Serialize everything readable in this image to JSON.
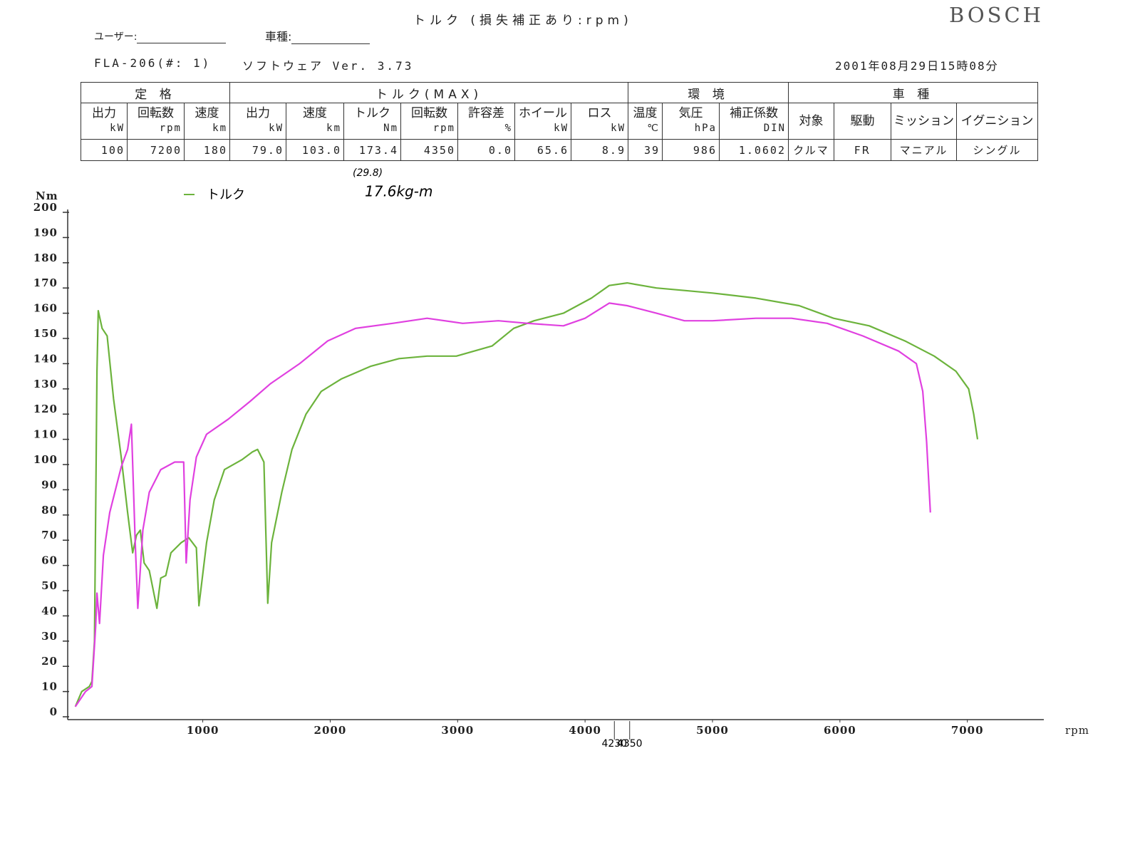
{
  "header": {
    "title": "トルク (損失補正あり:rpm)",
    "brand": "BOSCH",
    "user_label": "ユーザー:",
    "model_label": "車種:",
    "device": "FLA-206(#: 1)",
    "software": "ソフトウェア Ver. 3.73",
    "datetime": "2001年08月29日15時08分"
  },
  "table": {
    "groups": [
      {
        "label": "定 格",
        "columns": [
          {
            "name": "出力",
            "unit": "kW",
            "value": "100"
          },
          {
            "name": "回転数",
            "unit": "rpm",
            "value": "7200"
          },
          {
            "name": "速度",
            "unit": "km",
            "value": "180"
          }
        ]
      },
      {
        "label": "トルク(MAX)",
        "columns": [
          {
            "name": "出力",
            "unit": "kW",
            "value": "79.0"
          },
          {
            "name": "速度",
            "unit": "km",
            "value": "103.0"
          },
          {
            "name": "トルク",
            "unit": "Nm",
            "value": "173.4"
          },
          {
            "name": "回転数",
            "unit": "rpm",
            "value": "4350"
          },
          {
            "name": "許容差",
            "unit": "%",
            "value": "0.0"
          },
          {
            "name": "ホイール",
            "unit": "kW",
            "value": "65.6"
          },
          {
            "name": "ロス",
            "unit": "kW",
            "value": "8.9"
          }
        ]
      },
      {
        "label": "環 境",
        "columns": [
          {
            "name": "温度",
            "unit": "℃",
            "value": "39"
          },
          {
            "name": "気圧",
            "unit": "hPa",
            "value": "986"
          },
          {
            "name": "補正係数",
            "unit": "DIN",
            "value": "1.0602"
          }
        ]
      },
      {
        "label": "車 種",
        "columns": [
          {
            "name": "対象",
            "value": "クルマ"
          },
          {
            "name": "駆動",
            "value": "FR"
          },
          {
            "name": "ミッション",
            "value": "マニアル"
          },
          {
            "name": "イグニション",
            "value": "シングル"
          }
        ]
      }
    ]
  },
  "chart_data": {
    "type": "line",
    "y_label": "Nm",
    "x_label": "rpm",
    "xlim": [
      -60,
      7600
    ],
    "xticks": [
      1000,
      2000,
      3000,
      4000,
      5000,
      6000,
      7000
    ],
    "ylim": [
      0,
      200
    ],
    "yticks": [
      0,
      10,
      20,
      30,
      40,
      50,
      60,
      70,
      80,
      90,
      100,
      110,
      120,
      130,
      140,
      150,
      160,
      170,
      180,
      190,
      200
    ],
    "x_markers": [
      4230,
      4350
    ],
    "annotations": [
      "(29.8)",
      "17.6kg-m"
    ],
    "series": [
      {
        "name": "トルク",
        "color": "#6cb33c",
        "x": [
          0,
          50,
          110,
          130,
          150,
          170,
          180,
          210,
          250,
          300,
          360,
          410,
          450,
          480,
          510,
          540,
          580,
          640,
          670,
          710,
          750,
          830,
          890,
          950,
          970,
          1030,
          1090,
          1170,
          1310,
          1390,
          1430,
          1480,
          1510,
          1540,
          1620,
          1700,
          1810,
          1930,
          2090,
          2320,
          2540,
          2760,
          2990,
          3270,
          3440,
          3600,
          3830,
          4050,
          4190,
          4330,
          4560,
          4780,
          5000,
          5340,
          5680,
          5950,
          6230,
          6510,
          6740,
          6910,
          7010,
          7050,
          7080
        ],
        "values": [
          4,
          10,
          12,
          14,
          30,
          137,
          161,
          154,
          151,
          126,
          103,
          81,
          65,
          72,
          74,
          61,
          58,
          43,
          55,
          56,
          65,
          69,
          71,
          67,
          44,
          69,
          86,
          98,
          102,
          105,
          106,
          101,
          45,
          69,
          89,
          106,
          120,
          129,
          134,
          139,
          142,
          143,
          143,
          147,
          154,
          157,
          160,
          166,
          171,
          172,
          170,
          169,
          168,
          166,
          163,
          158,
          155,
          149,
          143,
          137,
          130,
          120,
          110
        ]
      },
      {
        "color": "#e040e0",
        "x": [
          0,
          80,
          130,
          160,
          170,
          190,
          220,
          270,
          360,
          410,
          440,
          470,
          490,
          530,
          580,
          670,
          780,
          850,
          870,
          900,
          950,
          1030,
          1200,
          1370,
          1530,
          1760,
          1980,
          2200,
          2490,
          2760,
          3040,
          3320,
          3550,
          3830,
          4000,
          4190,
          4330,
          4560,
          4780,
          5000,
          5340,
          5620,
          5900,
          6180,
          6460,
          6600,
          6650,
          6680,
          6710
        ],
        "values": [
          4,
          10,
          12,
          36,
          49,
          37,
          64,
          81,
          99,
          106,
          116,
          69,
          43,
          74,
          89,
          98,
          101,
          101,
          61,
          86,
          103,
          112,
          118,
          125,
          132,
          140,
          149,
          154,
          156,
          158,
          156,
          157,
          156,
          155,
          158,
          164,
          163,
          160,
          157,
          157,
          158,
          158,
          156,
          151,
          145,
          140,
          129,
          109,
          81
        ]
      }
    ]
  }
}
